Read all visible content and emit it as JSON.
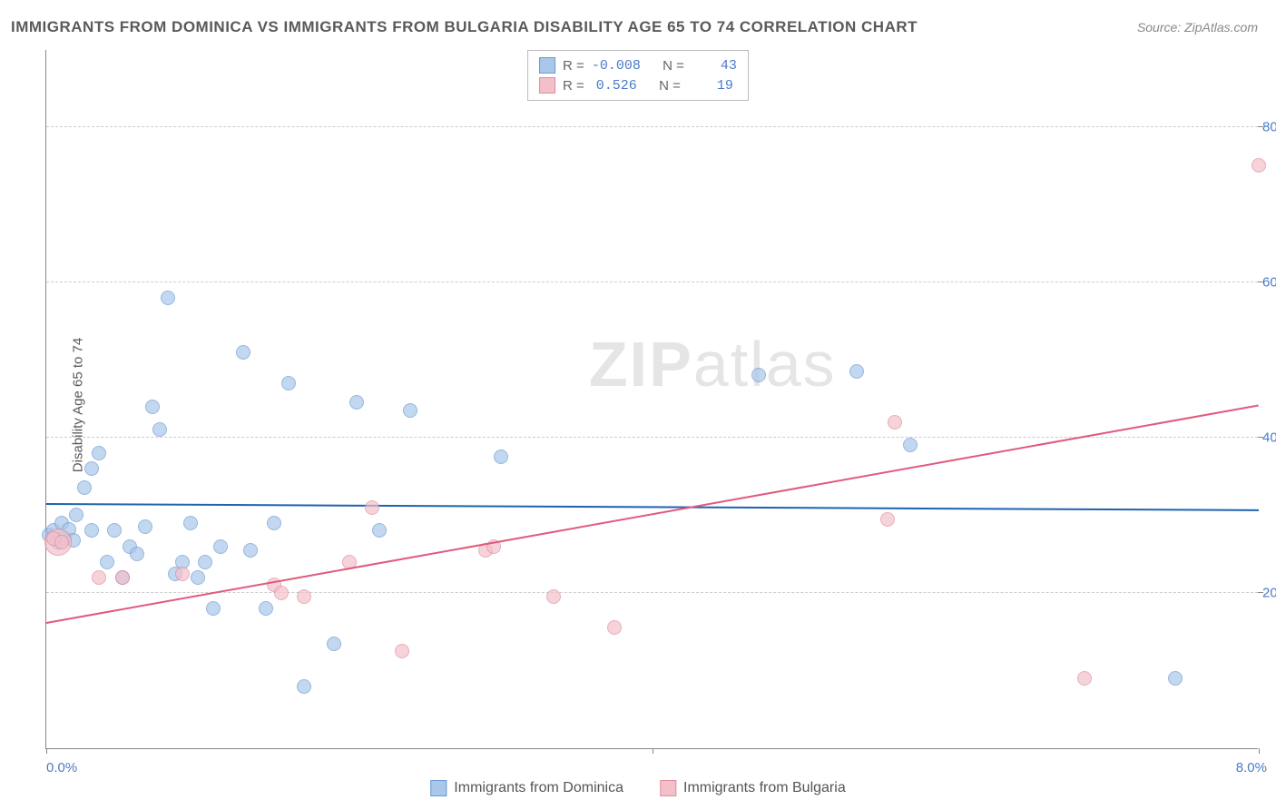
{
  "title": "IMMIGRANTS FROM DOMINICA VS IMMIGRANTS FROM BULGARIA DISABILITY AGE 65 TO 74 CORRELATION CHART",
  "source": "Source: ZipAtlas.com",
  "ylabel": "Disability Age 65 to 74",
  "watermark_bold": "ZIP",
  "watermark_light": "atlas",
  "chart": {
    "type": "scatter",
    "xlim": [
      0.0,
      8.0
    ],
    "ylim": [
      0.0,
      90.0
    ],
    "x_ticks": [
      {
        "v": 0.0,
        "label": "0.0%"
      },
      {
        "v": 8.0,
        "label": "8.0%"
      }
    ],
    "x_minor_tick": 4.0,
    "y_ticks": [
      {
        "v": 20.0,
        "label": "20.0%"
      },
      {
        "v": 40.0,
        "label": "40.0%"
      },
      {
        "v": 60.0,
        "label": "60.0%"
      },
      {
        "v": 80.0,
        "label": "80.0%"
      }
    ],
    "grid_color": "#cccccc",
    "background_color": "#ffffff",
    "series": [
      {
        "name": "Immigrants from Dominica",
        "fill": "#a9c7ea",
        "stroke": "#6d9ad1",
        "opacity": 0.7,
        "marker_size": 16,
        "R": "-0.008",
        "N": "43",
        "trend": {
          "x1": 0.0,
          "y1": 31.3,
          "x2": 8.0,
          "y2": 30.5,
          "color": "#1f63b0",
          "width": 2
        },
        "points": [
          [
            0.02,
            27.5
          ],
          [
            0.05,
            28.0
          ],
          [
            0.08,
            26.5
          ],
          [
            0.1,
            29.0
          ],
          [
            0.12,
            27.0
          ],
          [
            0.15,
            28.2
          ],
          [
            0.18,
            26.8
          ],
          [
            0.2,
            30.0
          ],
          [
            0.25,
            33.5
          ],
          [
            0.3,
            36.0
          ],
          [
            0.35,
            38.0
          ],
          [
            0.4,
            24.0
          ],
          [
            0.45,
            28.0
          ],
          [
            0.5,
            22.0
          ],
          [
            0.55,
            26.0
          ],
          [
            0.6,
            25.0
          ],
          [
            0.65,
            28.5
          ],
          [
            0.7,
            44.0
          ],
          [
            0.75,
            41.0
          ],
          [
            0.8,
            58.0
          ],
          [
            0.85,
            22.5
          ],
          [
            0.9,
            24.0
          ],
          [
            0.95,
            29.0
          ],
          [
            1.0,
            22.0
          ],
          [
            1.05,
            24.0
          ],
          [
            1.1,
            18.0
          ],
          [
            1.15,
            26.0
          ],
          [
            1.3,
            51.0
          ],
          [
            1.35,
            25.5
          ],
          [
            1.45,
            18.0
          ],
          [
            1.5,
            29.0
          ],
          [
            1.6,
            47.0
          ],
          [
            1.7,
            8.0
          ],
          [
            1.9,
            13.5
          ],
          [
            2.05,
            44.5
          ],
          [
            2.2,
            28.0
          ],
          [
            2.4,
            43.5
          ],
          [
            3.0,
            37.5
          ],
          [
            4.7,
            48.0
          ],
          [
            5.35,
            48.5
          ],
          [
            5.7,
            39.0
          ],
          [
            7.45,
            9.0
          ],
          [
            0.3,
            28.0
          ]
        ]
      },
      {
        "name": "Immigrants from Bulgaria",
        "fill": "#f3c0ca",
        "stroke": "#e08ca0",
        "opacity": 0.7,
        "marker_size": 16,
        "R": "0.526",
        "N": "19",
        "trend": {
          "x1": 0.0,
          "y1": 16.0,
          "x2": 8.0,
          "y2": 44.0,
          "color": "#e05a7d",
          "width": 2
        },
        "points": [
          [
            0.05,
            27.0
          ],
          [
            0.1,
            26.5
          ],
          [
            0.35,
            22.0
          ],
          [
            0.5,
            22.0
          ],
          [
            0.9,
            22.5
          ],
          [
            1.5,
            21.0
          ],
          [
            1.55,
            20.0
          ],
          [
            1.7,
            19.5
          ],
          [
            2.0,
            24.0
          ],
          [
            2.15,
            31.0
          ],
          [
            2.35,
            12.5
          ],
          [
            2.9,
            25.5
          ],
          [
            2.95,
            26.0
          ],
          [
            3.35,
            19.5
          ],
          [
            3.75,
            15.5
          ],
          [
            5.55,
            29.5
          ],
          [
            5.6,
            42.0
          ],
          [
            6.85,
            9.0
          ],
          [
            8.0,
            75.0
          ]
        ],
        "large_point": {
          "x": 0.08,
          "y": 26.5,
          "size": 30
        }
      }
    ]
  },
  "legend_bottom": [
    {
      "label": "Immigrants from Dominica",
      "fill": "#a9c7ea",
      "stroke": "#6d9ad1"
    },
    {
      "label": "Immigrants from Bulgaria",
      "fill": "#f3c0ca",
      "stroke": "#e08ca0"
    }
  ]
}
